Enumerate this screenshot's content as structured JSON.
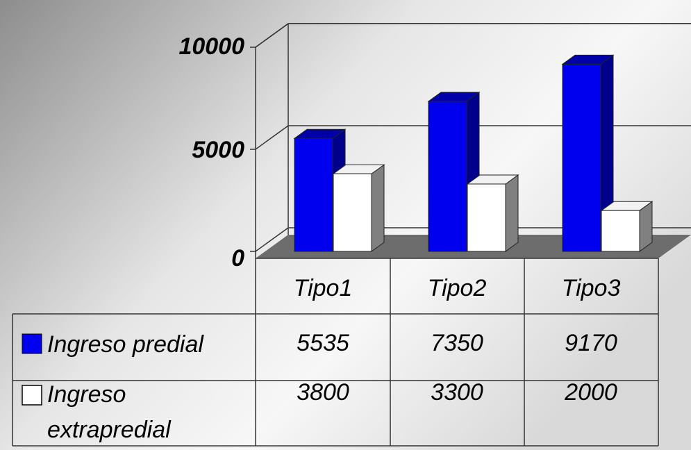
{
  "chart_data": {
    "type": "bar",
    "categories": [
      "Tipo1",
      "Tipo2",
      "Tipo3"
    ],
    "series": [
      {
        "name": "Ingreso predial",
        "values": [
          5535,
          7350,
          9170
        ],
        "color": "#0000EE",
        "display": [
          "5535",
          "7350",
          "9170"
        ]
      },
      {
        "name": "Ingreso extrapredial",
        "name_lines": [
          "Ingreso",
          "extrapredial"
        ],
        "values": [
          3800,
          3300,
          2000
        ],
        "color": "#FFFFFF",
        "display": [
          "3800",
          "3300",
          "2000"
        ]
      }
    ],
    "yticks": [
      "0",
      "5000",
      "10000"
    ],
    "ylim": [
      0,
      10000
    ],
    "grid": true,
    "bar_style": "3d",
    "legend": "data-table"
  }
}
